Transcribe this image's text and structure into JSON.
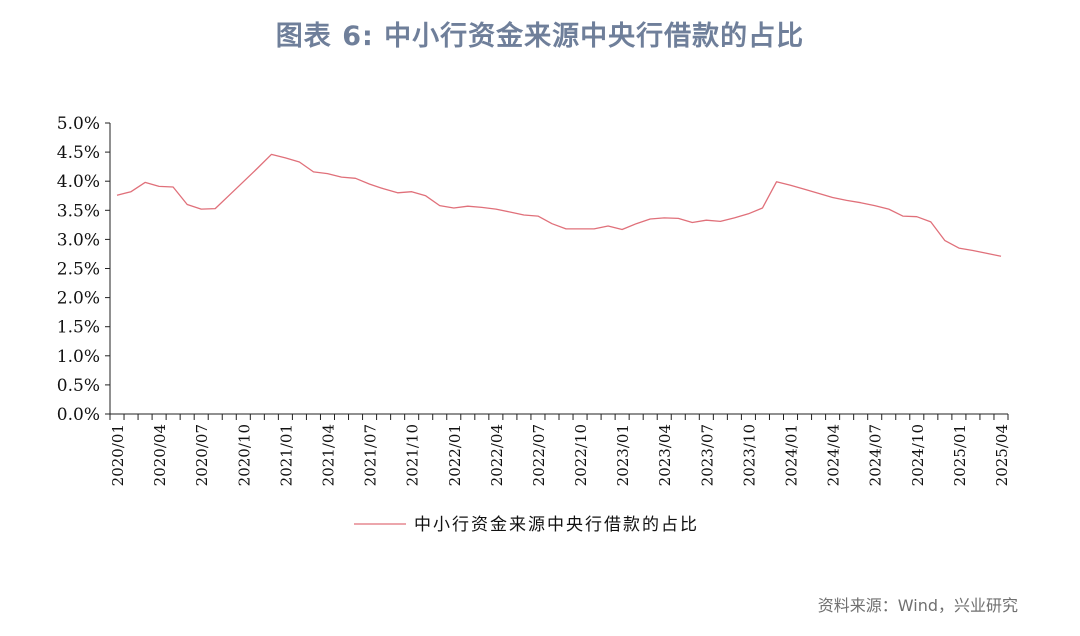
{
  "title": "图表 6: 中小行资金来源中央行借款的占比",
  "source": "资料来源：Wind，兴业研究",
  "chart_data": {
    "type": "line",
    "title": "图表 6: 中小行资金来源中央行借款的占比",
    "xlabel": "",
    "ylabel": "",
    "ylim": [
      0,
      5.0
    ],
    "yticks": [
      "0.0%",
      "0.5%",
      "1.0%",
      "1.5%",
      "2.0%",
      "2.5%",
      "3.0%",
      "3.5%",
      "4.0%",
      "4.5%",
      "5.0%"
    ],
    "xtick_labels": [
      "2020/01",
      "2020/04",
      "2020/07",
      "2020/10",
      "2021/01",
      "2021/04",
      "2021/07",
      "2021/10",
      "2022/01",
      "2022/04",
      "2022/07",
      "2022/10",
      "2023/01",
      "2023/04",
      "2023/07",
      "2023/10",
      "2024/01",
      "2024/04",
      "2024/07",
      "2024/10",
      "2025/01",
      "2025/04"
    ],
    "grid": false,
    "legend_position": "bottom",
    "color": "#e0707a",
    "x": [
      "2020/01",
      "2020/02",
      "2020/03",
      "2020/04",
      "2020/05",
      "2020/06",
      "2020/07",
      "2020/08",
      "2020/09",
      "2020/10",
      "2020/11",
      "2020/12",
      "2021/01",
      "2021/02",
      "2021/03",
      "2021/04",
      "2021/05",
      "2021/06",
      "2021/07",
      "2021/08",
      "2021/09",
      "2021/10",
      "2021/11",
      "2021/12",
      "2022/01",
      "2022/02",
      "2022/03",
      "2022/04",
      "2022/05",
      "2022/06",
      "2022/07",
      "2022/08",
      "2022/09",
      "2022/10",
      "2022/11",
      "2022/12",
      "2023/01",
      "2023/02",
      "2023/03",
      "2023/04",
      "2023/05",
      "2023/06",
      "2023/07",
      "2023/08",
      "2023/09",
      "2023/10",
      "2023/11",
      "2023/12",
      "2024/01",
      "2024/02",
      "2024/03",
      "2024/04",
      "2024/05",
      "2024/06",
      "2024/07",
      "2024/08",
      "2024/09",
      "2024/10",
      "2024/11",
      "2024/12",
      "2025/01",
      "2025/02",
      "2025/03",
      "2025/04"
    ],
    "series": [
      {
        "name": "中小行资金来源中央行借款的占比",
        "values": [
          3.76,
          3.82,
          3.98,
          3.91,
          3.9,
          3.6,
          3.52,
          3.53,
          3.76,
          3.99,
          4.22,
          4.46,
          4.4,
          4.33,
          4.16,
          4.13,
          4.07,
          4.05,
          3.95,
          3.87,
          3.8,
          3.82,
          3.75,
          3.58,
          3.54,
          3.57,
          3.55,
          3.52,
          3.47,
          3.42,
          3.4,
          3.27,
          3.18,
          3.18,
          3.18,
          3.23,
          3.17,
          3.27,
          3.35,
          3.37,
          3.36,
          3.29,
          3.33,
          3.31,
          3.37,
          3.44,
          3.54,
          3.99,
          3.93,
          3.86,
          3.79,
          3.72,
          3.67,
          3.63,
          3.58,
          3.52,
          3.4,
          3.39,
          3.3,
          2.98,
          2.85,
          2.81,
          2.76,
          2.71
        ]
      }
    ]
  }
}
